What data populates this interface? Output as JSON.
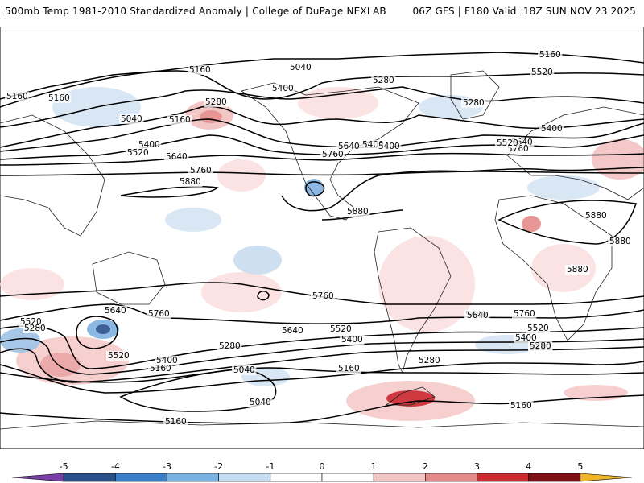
{
  "header": {
    "title": "500mb Temp 1981-2010 Standardized Anomaly | College of DuPage NEXLAB",
    "run_info": "06Z GFS | F180 Valid: 18Z SUN NOV 23 2025"
  },
  "map": {
    "contour_labels": [
      "5160",
      "5040",
      "5160",
      "5280",
      "5400",
      "5160",
      "5040",
      "5160",
      "5280",
      "5400",
      "5280",
      "5520",
      "5400",
      "5400",
      "5640",
      "5760",
      "5400",
      "5520",
      "5640",
      "5760",
      "5160",
      "5640",
      "5760",
      "5520",
      "5880",
      "5880",
      "5880",
      "5880",
      "5880",
      "5880",
      "5760",
      "5640",
      "5760",
      "5640",
      "5760",
      "5520",
      "5280",
      "5520",
      "5400",
      "5160",
      "5280",
      "5040",
      "5640",
      "5520",
      "5400",
      "5280",
      "5160",
      "5040",
      "5280",
      "5520",
      "5400",
      "5280",
      "5640",
      "5160",
      "5160"
    ],
    "colors": {
      "ocean_bg": "#ffffff",
      "land_line": "#000000",
      "contour": "#000000",
      "warm_light": "#f6c9c9",
      "warm_mid": "#e68a8a",
      "warm_strong": "#c9252b",
      "cold_light": "#c9dcf0",
      "cold_mid": "#7fb0e0",
      "cold_strong": "#2c4f8f"
    }
  },
  "colorbar": {
    "ticks": [
      "-5",
      "-4",
      "-3",
      "-2",
      "-1",
      "0",
      "1",
      "2",
      "3",
      "4",
      "5"
    ],
    "colors": [
      "#7a3fa6",
      "#2a4e86",
      "#3a7fc8",
      "#7bb2e2",
      "#c6dcf0",
      "#ffffff",
      "#ffffff",
      "#f3c6c6",
      "#e58a8a",
      "#c82b30",
      "#7f0f17",
      "#f0b428"
    ]
  }
}
